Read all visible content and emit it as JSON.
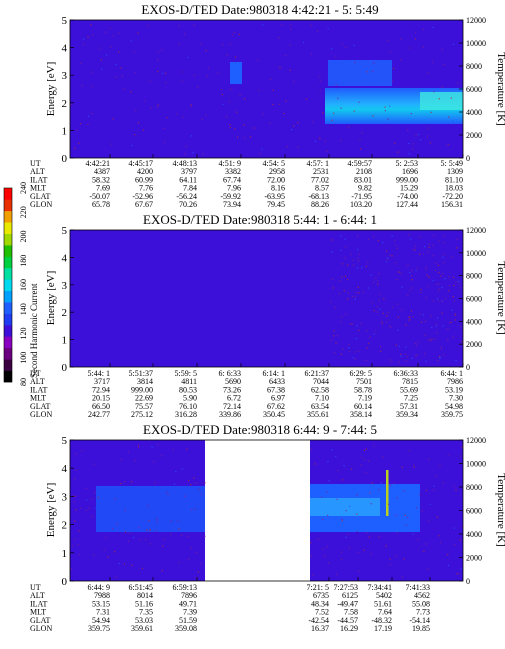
{
  "colorbar": {
    "label": "Second Harmonic Current",
    "ticks": [
      "80",
      "100",
      "120",
      "140",
      "160",
      "180",
      "200",
      "220",
      "240"
    ],
    "range": [
      80,
      240
    ],
    "colors": [
      "#000000",
      "#3a0040",
      "#6a0080",
      "#8a00c0",
      "#3c10d8",
      "#1e3cf0",
      "#1e60ff",
      "#00a0ff",
      "#00d8f0",
      "#00e0a0",
      "#00d040",
      "#20c000",
      "#a0d800",
      "#e8e800",
      "#f0a000",
      "#e83000",
      "#ff0000"
    ]
  },
  "chart_data": [
    {
      "type": "heatmap",
      "title": "EXOS-D/TED   Date:980318  4:42:21 - 5: 5:49",
      "ylabel": "Energy [eV]",
      "ylabel_right": "Temperature [K]",
      "ylim": [
        0,
        5
      ],
      "yticks": [
        "0",
        "1",
        "2",
        "3",
        "4",
        "5"
      ],
      "ylim_right": [
        0,
        12000
      ],
      "yticks_right": [
        "0",
        "2000",
        "4000",
        "6000",
        "8000",
        "10000",
        "12000"
      ],
      "background": "#3c10d8",
      "ephemeris_labels": [
        "UT",
        "ALT",
        "ILAT",
        "MLT",
        "GLAT",
        "GLON"
      ],
      "ephemeris": [
        [
          "4:42:21",
          "4387",
          "58.32",
          "7.69",
          "-50.07",
          "65.78"
        ],
        [
          "4:45:17",
          "4200",
          "60.99",
          "7.76",
          "-52.96",
          "67.67"
        ],
        [
          "4:48:13",
          "3797",
          "64.11",
          "7.84",
          "-56.24",
          "70.26"
        ],
        [
          "4:51: 9",
          "3382",
          "67.74",
          "7.96",
          "-59.92",
          "73.94"
        ],
        [
          "4:54: 5",
          "2958",
          "72.00",
          "8.16",
          "-63.95",
          "79.45"
        ],
        [
          "4:57: 1",
          "2531",
          "77.02",
          "8.57",
          "-68.13",
          "88.26"
        ],
        [
          "4:59:57",
          "2108",
          "83.01",
          "9.82",
          "-71.95",
          "103.20"
        ],
        [
          "5: 2:53",
          "1696",
          "999.00",
          "15.29",
          "-74.00",
          "127.44"
        ],
        [
          "5: 5:49",
          "1309",
          "81.10",
          "18.03",
          "-72.20",
          "156.31"
        ]
      ]
    },
    {
      "type": "heatmap",
      "title": "EXOS-D/TED   Date:980318  5:44: 1 - 6:44: 1",
      "ylabel": "Energy [eV]",
      "ylabel_right": "Temperature [K]",
      "ylim": [
        0,
        5
      ],
      "yticks": [
        "0",
        "1",
        "2",
        "3",
        "4",
        "5"
      ],
      "ylim_right": [
        0,
        12000
      ],
      "yticks_right": [
        "0",
        "2000",
        "4000",
        "6000",
        "8000",
        "10000",
        "12000"
      ],
      "background": "#3c10d8",
      "ephemeris_labels": [
        "UT",
        "ALT",
        "ILAT",
        "MLT",
        "GLAT",
        "GLON"
      ],
      "ephemeris": [
        [
          "5:44: 1",
          "3717",
          "72.94",
          "20.15",
          "66.50",
          "242.77"
        ],
        [
          "5:51:37",
          "3814",
          "999.00",
          "22.69",
          "75.57",
          "275.12"
        ],
        [
          "5:59: 5",
          "4811",
          "80.53",
          "5.90",
          "76.10",
          "316.28"
        ],
        [
          "6: 6:33",
          "5690",
          "73.26",
          "6.72",
          "72.14",
          "339.86"
        ],
        [
          "6:14: 1",
          "6433",
          "67.38",
          "6.97",
          "67.62",
          "350.45"
        ],
        [
          "6:21:37",
          "7044",
          "62.58",
          "7.10",
          "63.54",
          "355.61"
        ],
        [
          "6:29: 5",
          "7501",
          "58.78",
          "7.19",
          "60.14",
          "358.14"
        ],
        [
          "6:36:33",
          "7815",
          "55.69",
          "7.25",
          "57.31",
          "359.34"
        ],
        [
          "6:44: 1",
          "7986",
          "53.19",
          "7.30",
          "54.98",
          "359.75"
        ]
      ]
    },
    {
      "type": "heatmap",
      "title": "EXOS-D/TED   Date:980318  6:44: 9 - 7:44: 5",
      "ylabel": "Energy [eV]",
      "ylabel_right": "Temperature [K]",
      "ylim": [
        0,
        5
      ],
      "yticks": [
        "0",
        "1",
        "2",
        "3",
        "4",
        "5"
      ],
      "ylim_right": [
        0,
        12000
      ],
      "yticks_right": [
        "0",
        "2000",
        "4000",
        "6000",
        "8000",
        "10000",
        "12000"
      ],
      "background": "#3c10d8",
      "ephemeris_labels": [
        "UT",
        "ALT",
        "ILAT",
        "MLT",
        "GLAT",
        "GLON"
      ],
      "ephemeris": [
        [
          "6:44: 9",
          "7988",
          "53.15",
          "7.31",
          "54.94",
          "359.75"
        ],
        [
          "6:51:45",
          "8014",
          "51.16",
          "7.35",
          "53.03",
          "359.61"
        ],
        [
          "6:59:13",
          "7896",
          "49.71",
          "7.39",
          "51.59",
          "359.08"
        ],
        [
          "7:21: 5",
          "6735",
          "48.34",
          "7.52",
          "-42.54",
          "16.37"
        ],
        [
          "7:27:53",
          "6125",
          "-49.47",
          "7.58",
          "-44.57",
          "16.29"
        ],
        [
          "7:34:41",
          "5402",
          "51.61",
          "7.64",
          "-48.32",
          "17.19"
        ],
        [
          "7:41:33",
          "4562",
          "55.08",
          "7.73",
          "-54.14",
          "19.85"
        ]
      ]
    }
  ]
}
